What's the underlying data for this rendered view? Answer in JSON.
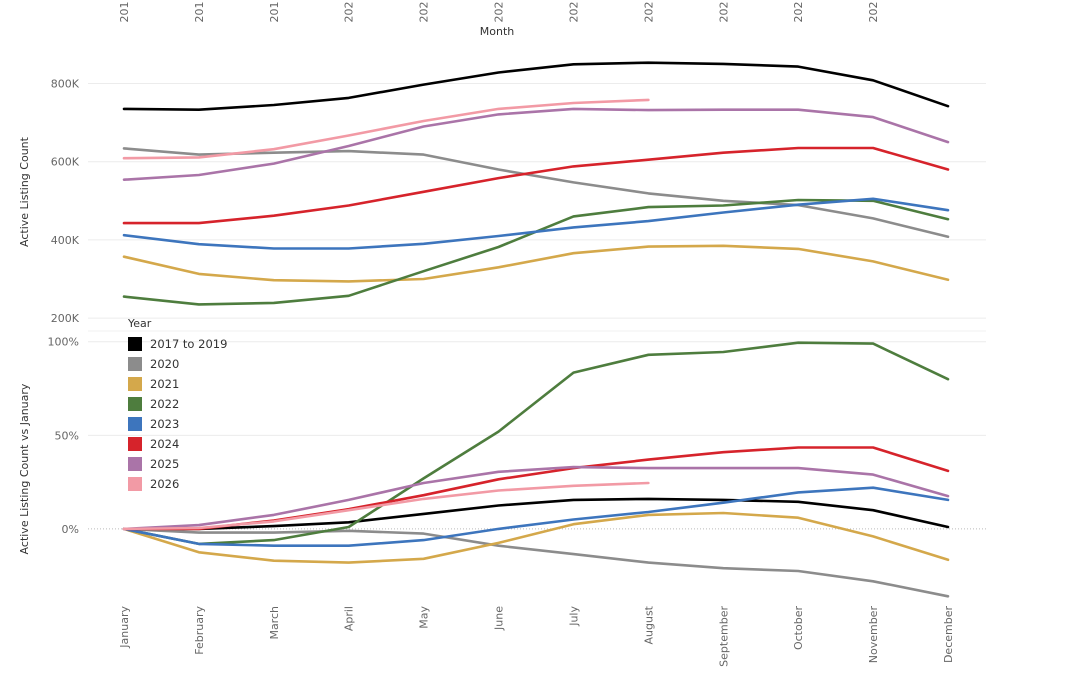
{
  "chart_data": {
    "type": "line",
    "x_axis_title": "Month",
    "top_tick_labels": [
      "201",
      "201",
      "201",
      "202",
      "202",
      "202",
      "202",
      "202",
      "202",
      "202",
      "202"
    ],
    "categories": [
      "January",
      "February",
      "March",
      "April",
      "May",
      "June",
      "July",
      "August",
      "September",
      "October",
      "November",
      "December"
    ],
    "legend_title": "Year",
    "legend_placement": "top-left (over charts)",
    "panels": [
      {
        "ylabel": "Active Listing Count",
        "y_ticks": [
          "800K",
          "600K",
          "400K",
          "200K"
        ],
        "y_tick_values": [
          800000,
          600000,
          400000,
          200000
        ],
        "ylim": [
          185000,
          860000
        ],
        "grid": true,
        "series": [
          {
            "name": "2017 to 2019",
            "color": "#000000",
            "values": [
              735000,
              733000,
              745000,
              763000,
              797000,
              828000,
              849000,
              853000,
              850000,
              843000,
              808000,
              742000
            ]
          },
          {
            "name": "2020",
            "color": "#8c8c8c",
            "values": [
              634000,
              618000,
              623000,
              627000,
              618000,
              580000,
              547000,
              519000,
              500000,
              489000,
              455000,
              408000
            ]
          },
          {
            "name": "2021",
            "color": "#d4a84b",
            "values": [
              357000,
              313000,
              297000,
              294000,
              300000,
              330000,
              366000,
              383000,
              385000,
              377000,
              345000,
              298000
            ]
          },
          {
            "name": "2022",
            "color": "#4e7d3e",
            "values": [
              255000,
              235000,
              239000,
              257000,
              320000,
              382000,
              460000,
              484000,
              488000,
              502000,
              500000,
              453000
            ]
          },
          {
            "name": "2023",
            "color": "#3d75bd",
            "values": [
              412000,
              389000,
              378000,
              378000,
              390000,
              410000,
              432000,
              448000,
              470000,
              490000,
              505000,
              476000
            ]
          },
          {
            "name": "2024",
            "color": "#d6232b",
            "values": [
              443000,
              443000,
              462000,
              488000,
              523000,
              558000,
              588000,
              605000,
              623000,
              635000,
              635000,
              580000
            ]
          },
          {
            "name": "2025",
            "color": "#aa74a8",
            "values": [
              554000,
              566000,
              595000,
              640000,
              690000,
              721000,
              735000,
              732000,
              733000,
              733000,
              714000,
              650000
            ]
          },
          {
            "name": "2026",
            "color": "#f29aa5",
            "values": [
              609000,
              611000,
              632000,
              667000,
              704000,
              735000,
              750000,
              758000
            ]
          }
        ]
      },
      {
        "ylabel": "Active Listing Count vs January",
        "y_ticks": [
          "100%",
          "50%",
          "0%"
        ],
        "y_tick_values": [
          100,
          50,
          0
        ],
        "ylim": [
          -38,
          102
        ],
        "grid": true,
        "series": [
          {
            "name": "2017 to 2019",
            "color": "#000000",
            "values": [
              0,
              0,
              1.5,
              3.5,
              8,
              12.5,
              15.5,
              16,
              15.5,
              14.5,
              10,
              1
            ]
          },
          {
            "name": "2020",
            "color": "#8c8c8c",
            "values": [
              0,
              -2,
              -2,
              -1,
              -2.5,
              -9,
              -13.5,
              -18,
              -21,
              -22.5,
              -28,
              -36
            ]
          },
          {
            "name": "2021",
            "color": "#d4a84b",
            "values": [
              0,
              -12.5,
              -17,
              -18,
              -16,
              -7.5,
              2.5,
              7.5,
              8.5,
              6,
              -4,
              -16.5
            ]
          },
          {
            "name": "2022",
            "color": "#4e7d3e",
            "values": [
              0,
              -8,
              -6,
              1,
              27,
              52,
              83.5,
              93,
              94.5,
              99.5,
              99,
              80
            ]
          },
          {
            "name": "2023",
            "color": "#3d75bd",
            "values": [
              0,
              -8,
              -9,
              -9,
              -6,
              0,
              5,
              9,
              14,
              19.5,
              22,
              15.5
            ]
          },
          {
            "name": "2024",
            "color": "#d6232b",
            "values": [
              0,
              0,
              4.5,
              10.5,
              18,
              26.5,
              32.5,
              37,
              41,
              43.5,
              43.5,
              31
            ]
          },
          {
            "name": "2025",
            "color": "#aa74a8",
            "values": [
              0,
              2,
              7.5,
              15.5,
              24.5,
              30.5,
              33,
              32.5,
              32.5,
              32.5,
              29,
              17.5
            ]
          },
          {
            "name": "2026",
            "color": "#f29aa5",
            "values": [
              0,
              0.5,
              4,
              10,
              16,
              20.5,
              23,
              24.5
            ]
          }
        ]
      }
    ]
  }
}
